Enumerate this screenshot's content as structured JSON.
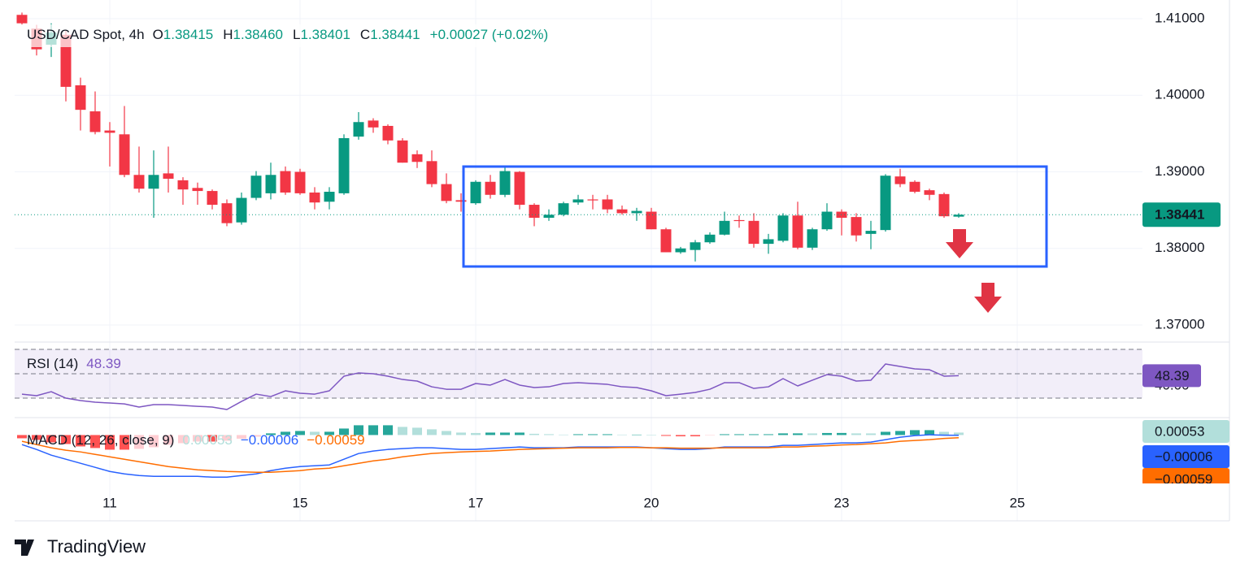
{
  "chart_data": {
    "type": "candlestick",
    "legend": {
      "symbol": "USD/CAD Spot, 4h",
      "open_label": "O",
      "open": "1.38415",
      "high_label": "H",
      "high": "1.38460",
      "low_label": "L",
      "low": "1.38401",
      "close_label": "C",
      "close": "1.38441",
      "change": "+0.00027 (+0.02%)"
    },
    "categories": [
      null,
      null,
      null,
      null,
      null,
      null,
      "11",
      null,
      null,
      null,
      null,
      null,
      null,
      null,
      null,
      null,
      null,
      null,
      null,
      "15",
      null,
      null,
      null,
      null,
      null,
      null,
      null,
      null,
      null,
      null,
      null,
      "17",
      null,
      null,
      null,
      null,
      null,
      null,
      null,
      null,
      null,
      null,
      null,
      "20",
      null,
      null,
      null,
      null,
      null,
      null,
      null,
      null,
      null,
      null,
      null,
      null,
      "23",
      null,
      null,
      null,
      null,
      null,
      null,
      null,
      null,
      null,
      null,
      null,
      "25"
    ],
    "open": [
      1.4105,
      1.4087,
      1.4066,
      1.4079,
      1.4013,
      1.3979,
      1.3954,
      1.3949,
      1.3896,
      1.3878,
      1.3898,
      1.3889,
      1.3879,
      1.3875,
      1.3859,
      1.3834,
      1.3866,
      1.3872,
      1.3901,
      1.39,
      1.3873,
      1.3861,
      1.3872,
      1.3946,
      1.3967,
      1.396,
      1.3941,
      1.3923,
      1.3914,
      1.3884,
      1.3863,
      1.3859,
      1.3887,
      1.387,
      1.39,
      1.3857,
      1.384,
      1.3844,
      1.386,
      1.3864,
      1.3864,
      1.3851,
      1.3846,
      1.3848,
      1.3825,
      1.3795,
      1.3798,
      1.3808,
      1.3818,
      1.3837,
      1.3836,
      1.3806,
      1.381,
      1.3843,
      1.3801,
      1.3825,
      1.3848,
      1.3841,
      1.3819,
      1.3824,
      1.3894,
      1.3887,
      1.3876,
      1.3871,
      1.38415,
      null,
      null,
      null,
      null
    ],
    "high": [
      1.4108,
      1.4092,
      1.4094,
      1.4084,
      1.4023,
      1.4005,
      1.3965,
      1.3986,
      1.3933,
      1.3928,
      1.3933,
      1.3893,
      1.3886,
      1.3877,
      1.3864,
      1.3873,
      1.3901,
      1.3912,
      1.3907,
      1.3904,
      1.388,
      1.388,
      1.3949,
      1.3978,
      1.397,
      1.3962,
      1.3944,
      1.3928,
      1.3928,
      1.3898,
      1.3872,
      1.3889,
      1.3896,
      1.3907,
      1.3901,
      1.3859,
      1.3851,
      1.3861,
      1.387,
      1.387,
      1.387,
      1.3856,
      1.3853,
      1.3853,
      1.3827,
      1.3802,
      1.3811,
      1.3821,
      1.3848,
      1.3843,
      1.3846,
      1.3819,
      1.3846,
      1.3861,
      1.3827,
      1.3859,
      1.3851,
      1.3846,
      1.3836,
      1.3897,
      1.3904,
      1.3889,
      1.3878,
      1.3873,
      1.3846,
      null,
      null,
      null,
      null
    ],
    "low": [
      1.4092,
      1.4052,
      1.405,
      1.3992,
      1.3954,
      1.3949,
      1.3907,
      1.3893,
      1.3873,
      1.384,
      1.3873,
      1.3857,
      1.3857,
      1.3851,
      1.3829,
      1.3831,
      1.3863,
      1.3864,
      1.387,
      1.387,
      1.3851,
      1.3851,
      1.387,
      1.3942,
      1.3951,
      1.3936,
      1.3912,
      1.3905,
      1.388,
      1.3859,
      1.3848,
      1.3857,
      1.3865,
      1.3867,
      1.3851,
      1.3829,
      1.3836,
      1.3842,
      1.3857,
      1.3851,
      1.3846,
      1.3844,
      1.3836,
      1.3825,
      1.3795,
      1.3793,
      1.3783,
      1.3806,
      1.3817,
      1.3827,
      1.3801,
      1.3793,
      1.3808,
      1.3799,
      1.3798,
      1.3823,
      1.3817,
      1.3809,
      1.3799,
      1.3822,
      1.388,
      1.3872,
      1.3863,
      1.384,
      1.38401,
      null,
      null,
      null,
      null
    ],
    "close": [
      1.4094,
      1.406,
      1.4082,
      1.4011,
      1.3981,
      1.3952,
      1.3951,
      1.3896,
      1.3878,
      1.3896,
      1.3891,
      1.3877,
      1.3875,
      1.3857,
      1.3833,
      1.3866,
      1.3895,
      1.3896,
      1.3873,
      1.3872,
      1.386,
      1.3874,
      1.3944,
      1.3965,
      1.3958,
      1.3941,
      1.3912,
      1.3913,
      1.3884,
      1.3862,
      1.3861,
      1.3887,
      1.387,
      1.3901,
      1.3857,
      1.384,
      1.3844,
      1.3859,
      1.3864,
      1.3863,
      1.3851,
      1.3846,
      1.3849,
      1.3825,
      1.3795,
      1.38,
      1.3808,
      1.3818,
      1.3836,
      1.3836,
      1.3806,
      1.3812,
      1.3843,
      1.3801,
      1.3825,
      1.3848,
      1.384,
      1.3817,
      1.3823,
      1.3895,
      1.3884,
      1.3874,
      1.387,
      1.3842,
      1.38441,
      null,
      null,
      null,
      null
    ],
    "up_color": "#089981",
    "down_color": "#f23645",
    "ylim": [
      1.36788,
      1.41244
    ],
    "yticks": [
      {
        "value": 1.41,
        "label": "1.41000"
      },
      {
        "value": 1.4,
        "label": "1.40000"
      },
      {
        "value": 1.39,
        "label": "1.39000"
      },
      {
        "value": 1.38,
        "label": "1.38000"
      },
      {
        "value": 1.37,
        "label": "1.37000"
      }
    ],
    "grid": true,
    "rsi": {
      "title": "RSI (14)",
      "value_label": "48.39",
      "color": "#7e57c2",
      "values": [
        33.3,
        32,
        35.3,
        30,
        28,
        26.7,
        26,
        25.3,
        22.7,
        24.7,
        24.7,
        24,
        23.3,
        22.7,
        20.7,
        27.3,
        33.3,
        31.3,
        36,
        34,
        33.3,
        36,
        48,
        50.7,
        50,
        48,
        45.3,
        44,
        39.3,
        37.3,
        37.3,
        42,
        40.7,
        45.3,
        40.7,
        38.7,
        39.3,
        42,
        42.7,
        42,
        41.3,
        39.3,
        38.7,
        36,
        32,
        33.3,
        34.7,
        37.3,
        42.7,
        42.7,
        38,
        39.3,
        46,
        40,
        44.7,
        49.3,
        48,
        44,
        44.7,
        58,
        56,
        54,
        53.3,
        48,
        48.39,
        null,
        null,
        null,
        null
      ],
      "ylim": [
        14.7,
        75.3
      ],
      "levels": [
        70,
        50,
        30
      ],
      "yticks": [
        {
          "value": 40,
          "label": "40.00"
        }
      ]
    },
    "macd": {
      "title": "MACD (12, 26, close, 9)",
      "ylim": [
        -0.0105,
        0.0036
      ],
      "histogram": {
        "label": "0.00053",
        "label_color": "#b2dfdb",
        "colors": {
          "rising_above": "#26a69a",
          "falling_above": "#b2dfdb",
          "falling_below": "#ff5252",
          "rising_below": "#ffcdd2"
        },
        "values": [
          -0.00071,
          -0.00106,
          -0.00159,
          -0.00195,
          -0.00247,
          -0.00282,
          -0.00318,
          -0.00318,
          -0.003,
          -0.00265,
          -0.00212,
          -0.00177,
          -0.00141,
          -0.00142,
          -0.00124,
          -0.00079,
          -0.00035,
          0.00036,
          0.00071,
          0.00088,
          0.00071,
          0.00071,
          0.00141,
          0.00212,
          0.00212,
          0.00212,
          0.00177,
          0.00159,
          0.00124,
          0.00088,
          0.00053,
          0.00044,
          0.00053,
          0.00053,
          0.00053,
          0.00027,
          0.00018,
          9e-05,
          0.00017,
          0.00017,
          0.00017,
          9e-05,
          9e-05,
          0,
          -0.00018,
          -0.00027,
          -0.00027,
          -9e-05,
          0.00017,
          0.00017,
          0.00017,
          0.00017,
          0.00036,
          0.00036,
          0.00035,
          0.00044,
          0.00045,
          0.00036,
          0.00035,
          0.0007,
          0.00088,
          0.00106,
          0.00106,
          0.0007,
          0.00053,
          null,
          null,
          null,
          null
        ]
      },
      "macd": {
        "label": "−0.00006",
        "color": "#2962ff",
        "values": [
          -0.00207,
          -0.00313,
          -0.00436,
          -0.00525,
          -0.00613,
          -0.00701,
          -0.0079,
          -0.00843,
          -0.00878,
          -0.00896,
          -0.00896,
          -0.00896,
          -0.00896,
          -0.00914,
          -0.00914,
          -0.00878,
          -0.00843,
          -0.00772,
          -0.00719,
          -0.00684,
          -0.00666,
          -0.00648,
          -0.00525,
          -0.00401,
          -0.00348,
          -0.00313,
          -0.00295,
          -0.00277,
          -0.00277,
          -0.00295,
          -0.00313,
          -0.00313,
          -0.00295,
          -0.00277,
          -0.0026,
          -0.00277,
          -0.00277,
          -0.00277,
          -0.0026,
          -0.0026,
          -0.0026,
          -0.0026,
          -0.0026,
          -0.00277,
          -0.00295,
          -0.00313,
          -0.00313,
          -0.00295,
          -0.0026,
          -0.0026,
          -0.0026,
          -0.0026,
          -0.00224,
          -0.00224,
          -0.00207,
          -0.00189,
          -0.00171,
          -0.00171,
          -0.00154,
          -0.00101,
          -0.00048,
          -0.00012,
          5e-05,
          -4e-05,
          -6e-05,
          null,
          null,
          null,
          null
        ]
      },
      "signal": {
        "label": "−0.00059",
        "color": "#ff6d00",
        "values": [
          -0.00136,
          -0.00207,
          -0.00277,
          -0.0033,
          -0.00366,
          -0.00419,
          -0.00472,
          -0.00525,
          -0.00578,
          -0.00631,
          -0.00684,
          -0.00719,
          -0.00755,
          -0.00772,
          -0.0079,
          -0.00799,
          -0.00808,
          -0.00808,
          -0.0079,
          -0.00772,
          -0.00737,
          -0.00719,
          -0.00666,
          -0.00613,
          -0.0056,
          -0.00525,
          -0.00472,
          -0.00436,
          -0.00401,
          -0.00383,
          -0.00366,
          -0.00357,
          -0.00348,
          -0.0033,
          -0.00313,
          -0.00304,
          -0.00295,
          -0.00286,
          -0.00277,
          -0.00277,
          -0.00277,
          -0.00269,
          -0.00269,
          -0.00277,
          -0.00277,
          -0.00286,
          -0.00286,
          -0.00286,
          -0.00277,
          -0.00277,
          -0.00277,
          -0.00277,
          -0.0026,
          -0.0026,
          -0.00242,
          -0.00233,
          -0.00216,
          -0.00207,
          -0.00189,
          -0.00171,
          -0.00136,
          -0.00118,
          -0.00101,
          -0.00074,
          -0.00059,
          null,
          null,
          null,
          null
        ]
      }
    },
    "brand": "TradingView"
  }
}
